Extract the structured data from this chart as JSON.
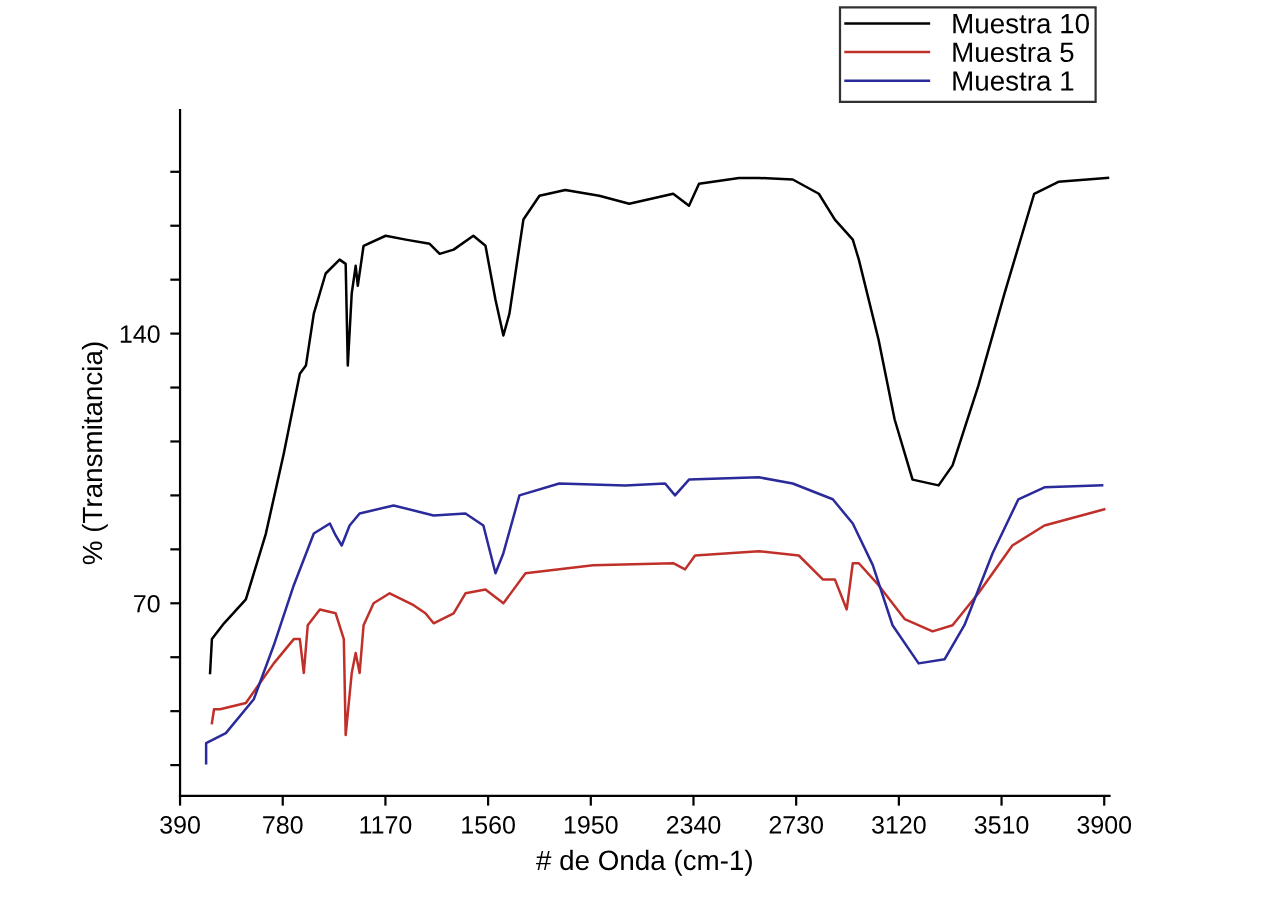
{
  "chart_data": {
    "type": "line",
    "xlabel": "# de Onda (cm-1)",
    "ylabel": "% (Transmitancia)",
    "xlim": [
      390,
      3920
    ],
    "xticks": [
      390,
      780,
      1170,
      1560,
      1950,
      2340,
      2730,
      3120,
      3510,
      3900
    ],
    "ylim": [
      20,
      198
    ],
    "yticks": [
      {
        "value": 28,
        "label": null
      },
      {
        "value": 42,
        "label": null
      },
      {
        "value": 56,
        "label": null
      },
      70,
      {
        "value": 84,
        "label": null
      },
      {
        "value": 98,
        "label": null
      },
      {
        "value": 112,
        "label": null
      },
      {
        "value": 126,
        "label": null
      },
      140,
      {
        "value": 154,
        "label": null
      },
      {
        "value": 168,
        "label": null
      },
      {
        "value": 182,
        "label": null
      }
    ],
    "grid": false,
    "legend": "top right",
    "marker": "none",
    "line_style": "solid",
    "series": [
      {
        "name": "Muestra 10",
        "color": "#000000",
        "x": [
          504,
          511,
          557,
          640,
          716,
          784,
          845,
          868,
          898,
          943,
          996,
          1019,
          1027,
          1042,
          1057,
          1065,
          1087,
          1171,
          1247,
          1338,
          1376,
          1429,
          1504,
          1550,
          1588,
          1618,
          1641,
          1694,
          1755,
          1853,
          1982,
          2096,
          2263,
          2323,
          2361,
          2513,
          2588,
          2717,
          2816,
          2877,
          2945,
          2968,
          3043,
          3104,
          3172,
          3271,
          3324,
          3422,
          3521,
          3634,
          3726,
          3915
        ],
        "values": [
          51.9,
          60.7,
          64.8,
          71,
          88.1,
          108.9,
          129.6,
          131.7,
          145.2,
          155.6,
          159.2,
          158.1,
          131.7,
          150.4,
          157.6,
          152.4,
          162.8,
          165.4,
          164.4,
          163.3,
          160.7,
          161.8,
          165.4,
          162.8,
          148.8,
          139.5,
          145.2,
          169.6,
          175.8,
          177.3,
          175.8,
          173.7,
          176.3,
          173.2,
          178.9,
          180.4,
          180.4,
          180,
          176.3,
          169.6,
          164.4,
          159.2,
          138.4,
          117.7,
          102.1,
          100.6,
          105.8,
          126.5,
          150.4,
          176.3,
          179.4,
          180.4
        ]
      },
      {
        "name": "Muestra 5",
        "color": "#c0302a",
        "x": [
          511,
          519,
          542,
          640,
          746,
          822,
          845,
          860,
          875,
          921,
          981,
          1012,
          1019,
          1042,
          1057,
          1072,
          1087,
          1125,
          1186,
          1277,
          1322,
          1353,
          1429,
          1474,
          1550,
          1618,
          1702,
          1959,
          2263,
          2308,
          2346,
          2588,
          2740,
          2831,
          2877,
          2922,
          2945,
          2968,
          3043,
          3142,
          3248,
          3324,
          3422,
          3551,
          3673,
          3900
        ],
        "values": [
          38.9,
          42.5,
          42.5,
          44.1,
          54.4,
          60.7,
          60.7,
          51.9,
          64.3,
          68.4,
          67.4,
          60.7,
          35.8,
          51.9,
          57.1,
          51.9,
          64.3,
          70,
          72.6,
          69.5,
          67.4,
          64.8,
          67.4,
          72.6,
          73.6,
          70,
          77.8,
          79.9,
          80.4,
          78.8,
          82.4,
          83.5,
          82.4,
          76.2,
          76.2,
          68.4,
          80.4,
          80.4,
          74.7,
          65.9,
          62.7,
          64.3,
          72.6,
          85,
          90.2,
          94.4
        ]
      },
      {
        "name": "Muestra 1",
        "color": "#2a2a9a",
        "x": [
          489,
          489,
          564,
          670,
          746,
          822,
          898,
          959,
          981,
          1004,
          1034,
          1072,
          1201,
          1353,
          1474,
          1542,
          1588,
          1618,
          1679,
          1830,
          2081,
          2232,
          2270,
          2323,
          2588,
          2717,
          2869,
          2945,
          3021,
          3096,
          3195,
          3294,
          3369,
          3476,
          3574,
          3673,
          3892
        ],
        "values": [
          28.5,
          33.7,
          36.3,
          45.1,
          59.1,
          74.7,
          88.1,
          90.7,
          87.6,
          85,
          90.2,
          93.3,
          95.4,
          92.8,
          93.3,
          90.2,
          77.8,
          83,
          98,
          101.1,
          100.6,
          101.1,
          98,
          102.1,
          102.7,
          101.1,
          97,
          90.7,
          79.9,
          64.3,
          54.4,
          55.5,
          64.3,
          83,
          97,
          100.1,
          100.6
        ]
      }
    ]
  }
}
